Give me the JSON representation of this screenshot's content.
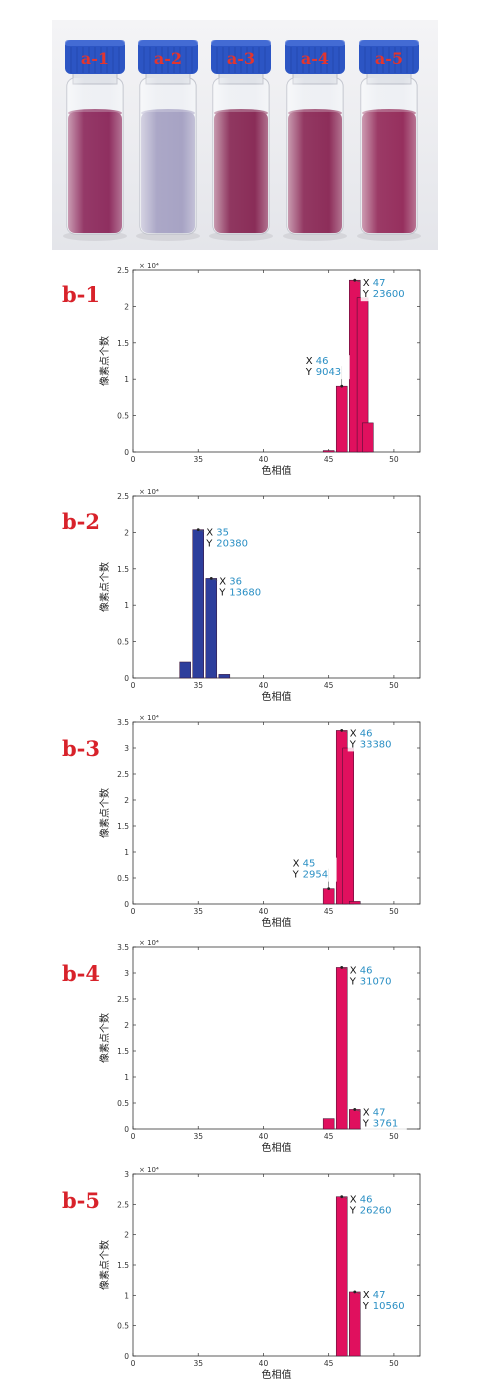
{
  "photo": {
    "vial_labels": [
      "a-1",
      "a-2",
      "a-3",
      "a-4",
      "a-5"
    ],
    "cap_color": "#2c55c4",
    "cap_label_color": "#e2352f",
    "liquid_colors": [
      "#8f2f60",
      "#a7a3c4",
      "#8a2d58",
      "#8d2e5a",
      "#96305e"
    ]
  },
  "chart_data": [
    {
      "type": "bar",
      "panel": "b-1",
      "xlabel": "色相值",
      "ylabel": "像素点个数",
      "exponent_label": "× 10⁴",
      "xlim": [
        30,
        52
      ],
      "xticks": [
        "0",
        "35",
        "40",
        "45",
        "50"
      ],
      "ylim": [
        0,
        2.5
      ],
      "yticks": [
        "0",
        "0.5",
        "1",
        "1.5",
        "2",
        "2.5"
      ],
      "color": "#e0105e",
      "bars": [
        {
          "x": 45,
          "y": 0.02
        },
        {
          "x": 46,
          "y": 0.9043
        },
        {
          "x": 47,
          "y": 2.36
        },
        {
          "x": 47.6,
          "y": 2.12
        },
        {
          "x": 48,
          "y": 0.4
        }
      ],
      "datatips": [
        {
          "x_label": "X",
          "x_value": "46",
          "y_label": "Y",
          "y_value": "9043",
          "bar": 1
        },
        {
          "x_label": "X",
          "x_value": "47",
          "y_label": "Y",
          "y_value": "23600",
          "bar": 2
        }
      ]
    },
    {
      "type": "bar",
      "panel": "b-2",
      "xlabel": "色相值",
      "ylabel": "像素点个数",
      "exponent_label": "× 10⁴",
      "xlim": [
        30,
        52
      ],
      "xticks": [
        "0",
        "35",
        "40",
        "45",
        "50"
      ],
      "ylim": [
        0,
        2.5
      ],
      "yticks": [
        "0",
        "0.5",
        "1",
        "1.5",
        "2",
        "2.5"
      ],
      "color": "#2d3e9c",
      "bars": [
        {
          "x": 34,
          "y": 0.22
        },
        {
          "x": 35,
          "y": 2.038
        },
        {
          "x": 36,
          "y": 1.368
        },
        {
          "x": 37,
          "y": 0.05
        }
      ],
      "datatips": [
        {
          "x_label": "X",
          "x_value": "35",
          "y_label": "Y",
          "y_value": "20380",
          "bar": 1
        },
        {
          "x_label": "X",
          "x_value": "36",
          "y_label": "Y",
          "y_value": "13680",
          "bar": 2
        }
      ]
    },
    {
      "type": "bar",
      "panel": "b-3",
      "xlabel": "色相值",
      "ylabel": "像素点个数",
      "exponent_label": "× 10⁴",
      "xlim": [
        30,
        52
      ],
      "xticks": [
        "0",
        "35",
        "40",
        "45",
        "50"
      ],
      "ylim": [
        0,
        3.5
      ],
      "yticks": [
        "0",
        "0.5",
        "1",
        "1.5",
        "2",
        "2.5",
        "3",
        "3.5"
      ],
      "color": "#e0105e",
      "bars": [
        {
          "x": 45,
          "y": 0.2954
        },
        {
          "x": 46,
          "y": 3.338
        },
        {
          "x": 46.5,
          "y": 3.0
        },
        {
          "x": 47,
          "y": 0.05
        }
      ],
      "datatips": [
        {
          "x_label": "X",
          "x_value": "45",
          "y_label": "Y",
          "y_value": "2954",
          "bar": 0
        },
        {
          "x_label": "X",
          "x_value": "46",
          "y_label": "Y",
          "y_value": "33380",
          "bar": 1
        }
      ]
    },
    {
      "type": "bar",
      "panel": "b-4",
      "xlabel": "色相值",
      "ylabel": "像素点个数",
      "exponent_label": "× 10⁴",
      "xlim": [
        30,
        52
      ],
      "xticks": [
        "0",
        "35",
        "40",
        "45",
        "50"
      ],
      "ylim": [
        0,
        3.5
      ],
      "yticks": [
        "0",
        "0.5",
        "1",
        "1.5",
        "2",
        "2.5",
        "3",
        "3.5"
      ],
      "color": "#e0105e",
      "bars": [
        {
          "x": 45,
          "y": 0.2
        },
        {
          "x": 46,
          "y": 3.107
        },
        {
          "x": 47,
          "y": 0.3761
        }
      ],
      "datatips": [
        {
          "x_label": "X",
          "x_value": "46",
          "y_label": "Y",
          "y_value": "31070",
          "bar": 1
        },
        {
          "x_label": "X",
          "x_value": "47",
          "y_label": "Y",
          "y_value": "3761",
          "bar": 2
        }
      ]
    },
    {
      "type": "bar",
      "panel": "b-5",
      "xlabel": "色相值",
      "ylabel": "像素点个数",
      "exponent_label": "× 10⁴",
      "xlim": [
        30,
        52
      ],
      "xticks": [
        "0",
        "35",
        "40",
        "45",
        "50"
      ],
      "ylim": [
        0,
        3
      ],
      "yticks": [
        "0",
        "0.5",
        "1",
        "1.5",
        "2",
        "2.5",
        "3"
      ],
      "color": "#e0105e",
      "bars": [
        {
          "x": 46,
          "y": 2.626
        },
        {
          "x": 47,
          "y": 1.056
        }
      ],
      "datatips": [
        {
          "x_label": "X",
          "x_value": "46",
          "y_label": "Y",
          "y_value": "26260",
          "bar": 0
        },
        {
          "x_label": "X",
          "x_value": "47",
          "y_label": "Y",
          "y_value": "10560",
          "bar": 1
        }
      ]
    }
  ]
}
